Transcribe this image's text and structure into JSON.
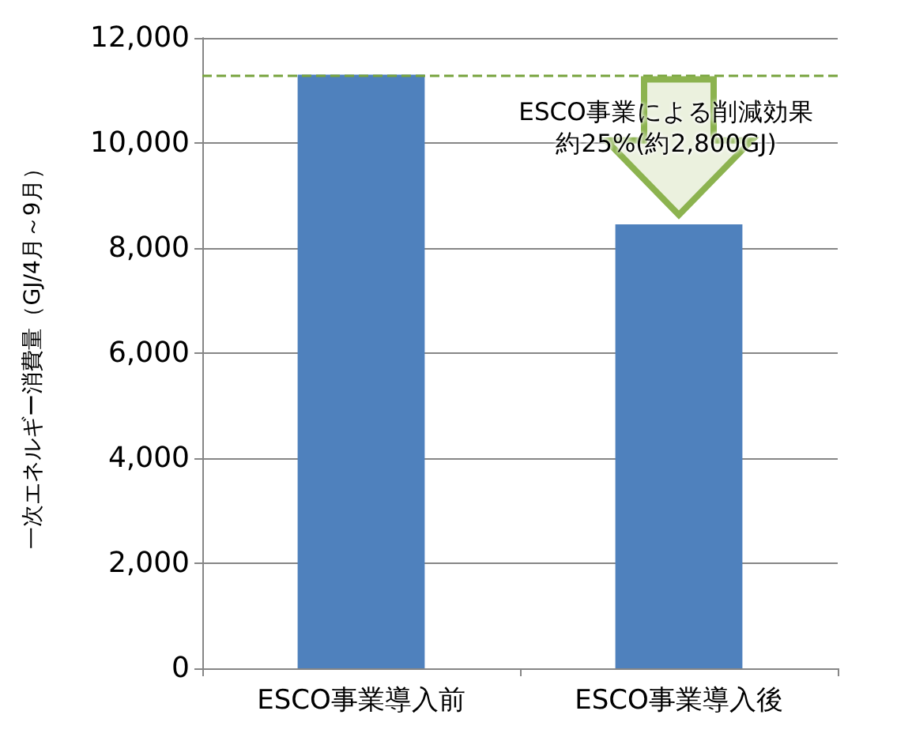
{
  "chart_data": {
    "type": "bar",
    "ylabel": "一次エネルギー消費量（GJ/4月～9月）",
    "categories": [
      "ESCO事業導入前",
      "ESCO事業導入後"
    ],
    "values": [
      11300,
      8450
    ],
    "color": "#4f81bd",
    "ylim": [
      0,
      12000
    ],
    "yticks": [
      0,
      {
        "value": 2000,
        "label": "2,000"
      },
      {
        "value": 4000,
        "label": "4,000"
      },
      {
        "value": 6000,
        "label": "6,000"
      },
      {
        "value": 8000,
        "label": "8,000"
      },
      {
        "value": 10000,
        "label": "10,000"
      },
      {
        "value": 12000,
        "label": "12,000"
      }
    ],
    "grid": "y",
    "ref_lines": [
      {
        "axis": "y",
        "value": 11300,
        "color": "#77a33d",
        "line_style": "dashed"
      }
    ],
    "annotations": [
      "ESCO事業による削減効果",
      "約25%(約2,800GJ)"
    ]
  }
}
